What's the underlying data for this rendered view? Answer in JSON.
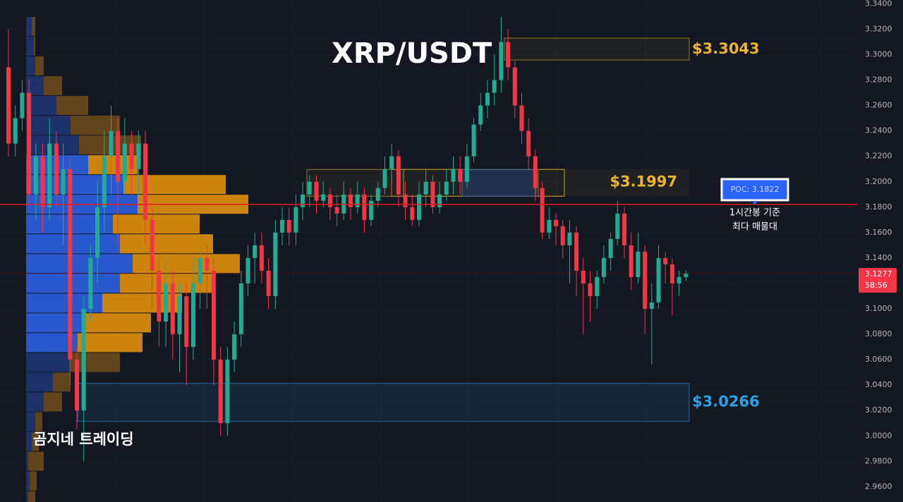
{
  "chart_data": {
    "type": "candlestick",
    "title": "XRP/USDT",
    "watermark": "곰지네 트레이딩",
    "up_color": "#22ab94",
    "down_color": "#f23645",
    "ylim": [
      2.948,
      3.343
    ],
    "yticks": [
      {
        "value": 3.34,
        "label": "3.3400"
      },
      {
        "value": 3.32,
        "label": "3.3200"
      },
      {
        "value": 3.3,
        "label": "3.3000"
      },
      {
        "value": 3.28,
        "label": "3.2800"
      },
      {
        "value": 3.26,
        "label": "3.2600"
      },
      {
        "value": 3.24,
        "label": "3.2400"
      },
      {
        "value": 3.22,
        "label": "3.2200"
      },
      {
        "value": 3.2,
        "label": "3.2000"
      },
      {
        "value": 3.18,
        "label": "3.1800"
      },
      {
        "value": 3.16,
        "label": "3.1600"
      },
      {
        "value": 3.14,
        "label": "3.1400"
      },
      {
        "value": 3.12,
        "label": "3.1200"
      },
      {
        "value": 3.1,
        "label": "3.1000"
      },
      {
        "value": 3.08,
        "label": "3.0800"
      },
      {
        "value": 3.06,
        "label": "3.0600"
      },
      {
        "value": 3.04,
        "label": "3.0400"
      },
      {
        "value": 3.02,
        "label": "3.0200"
      },
      {
        "value": 3.0,
        "label": "3.0000"
      },
      {
        "value": 2.98,
        "label": "2.9800"
      },
      {
        "value": 2.96,
        "label": "2.9600"
      }
    ],
    "open": [
      3.29,
      3.23,
      3.25,
      3.27,
      3.19,
      3.22,
      3.18,
      3.23,
      3.19,
      3.21,
      3.06,
      3.02,
      3.1,
      3.14,
      3.18,
      3.22,
      3.24,
      3.2,
      3.23,
      3.21,
      3.23,
      3.17,
      3.13,
      3.09,
      3.12,
      3.08,
      3.11,
      3.07,
      3.12,
      3.14,
      3.13,
      3.06,
      3.01,
      3.06,
      3.08,
      3.12,
      3.14,
      3.15,
      3.13,
      3.11,
      3.16,
      3.17,
      3.16,
      3.18,
      3.19,
      3.2,
      3.185,
      3.19,
      3.18,
      3.175,
      3.19,
      3.18,
      3.19,
      3.17,
      3.185,
      3.195,
      3.21,
      3.22,
      3.19,
      3.18,
      3.17,
      3.19,
      3.2,
      3.18,
      3.19,
      3.2,
      3.21,
      3.2,
      3.22,
      3.245,
      3.26,
      3.27,
      3.28,
      3.31,
      3.29,
      3.26,
      3.24,
      3.22,
      3.195,
      3.16,
      3.17,
      3.165,
      3.15,
      3.16,
      3.13,
      3.12,
      3.11,
      3.125,
      3.14,
      3.155,
      3.175,
      3.15,
      3.125,
      3.145,
      3.1,
      3.105,
      3.14,
      3.135,
      3.12,
      3.125
    ],
    "high": [
      3.32,
      3.26,
      3.28,
      3.28,
      3.23,
      3.23,
      3.25,
      3.24,
      3.23,
      3.22,
      3.07,
      3.11,
      3.15,
      3.2,
      3.24,
      3.26,
      3.25,
      3.25,
      3.24,
      3.24,
      3.24,
      3.18,
      3.14,
      3.14,
      3.13,
      3.12,
      3.12,
      3.14,
      3.15,
      3.15,
      3.14,
      3.07,
      3.07,
      3.09,
      3.13,
      3.15,
      3.16,
      3.16,
      3.14,
      3.17,
      3.18,
      3.18,
      3.19,
      3.2,
      3.205,
      3.205,
      3.2,
      3.195,
      3.19,
      3.2,
      3.195,
      3.2,
      3.195,
      3.19,
      3.2,
      3.22,
      3.23,
      3.225,
      3.2,
      3.19,
      3.2,
      3.21,
      3.205,
      3.2,
      3.21,
      3.22,
      3.22,
      3.23,
      3.25,
      3.27,
      3.28,
      3.3,
      3.33,
      3.32,
      3.295,
      3.27,
      3.25,
      3.225,
      3.2,
      3.18,
      3.175,
      3.17,
      3.17,
      3.165,
      3.14,
      3.13,
      3.13,
      3.15,
      3.16,
      3.185,
      3.18,
      3.16,
      3.16,
      3.15,
      3.12,
      3.15,
      3.145,
      3.14,
      3.13,
      3.13
    ],
    "low": [
      3.22,
      3.22,
      3.24,
      3.18,
      3.17,
      3.16,
      3.17,
      3.18,
      3.15,
      3.04,
      3.005,
      2.98,
      3.09,
      3.12,
      3.16,
      3.19,
      3.15,
      3.19,
      3.19,
      3.19,
      3.15,
      3.1,
      3.07,
      3.07,
      3.06,
      3.05,
      3.04,
      3.06,
      3.1,
      3.1,
      3.04,
      3.0,
      3.0,
      3.05,
      3.07,
      3.11,
      3.12,
      3.12,
      3.1,
      3.1,
      3.15,
      3.15,
      3.15,
      3.17,
      3.18,
      3.175,
      3.18,
      3.17,
      3.165,
      3.17,
      3.17,
      3.175,
      3.16,
      3.165,
      3.18,
      3.19,
      3.2,
      3.18,
      3.17,
      3.165,
      3.165,
      3.18,
      3.175,
      3.175,
      3.185,
      3.19,
      3.19,
      3.195,
      3.215,
      3.24,
      3.25,
      3.26,
      3.27,
      3.28,
      3.25,
      3.23,
      3.21,
      3.185,
      3.155,
      3.155,
      3.15,
      3.14,
      3.12,
      3.11,
      3.08,
      3.09,
      3.1,
      3.12,
      3.13,
      3.15,
      3.14,
      3.115,
      3.12,
      3.08,
      3.056,
      3.1,
      3.12,
      3.095,
      3.11,
      3.122
    ],
    "close": [
      3.23,
      3.25,
      3.27,
      3.19,
      3.22,
      3.18,
      3.23,
      3.19,
      3.21,
      3.06,
      3.02,
      3.1,
      3.14,
      3.18,
      3.22,
      3.24,
      3.2,
      3.23,
      3.21,
      3.23,
      3.17,
      3.13,
      3.09,
      3.12,
      3.08,
      3.11,
      3.07,
      3.12,
      3.14,
      3.13,
      3.06,
      3.01,
      3.06,
      3.08,
      3.12,
      3.14,
      3.15,
      3.13,
      3.11,
      3.16,
      3.17,
      3.16,
      3.18,
      3.19,
      3.2,
      3.185,
      3.19,
      3.18,
      3.175,
      3.19,
      3.18,
      3.19,
      3.17,
      3.185,
      3.195,
      3.21,
      3.22,
      3.19,
      3.18,
      3.17,
      3.19,
      3.2,
      3.18,
      3.19,
      3.2,
      3.21,
      3.2,
      3.22,
      3.245,
      3.26,
      3.27,
      3.28,
      3.31,
      3.29,
      3.26,
      3.24,
      3.22,
      3.195,
      3.16,
      3.17,
      3.165,
      3.15,
      3.16,
      3.13,
      3.12,
      3.11,
      3.125,
      3.14,
      3.155,
      3.175,
      3.15,
      3.125,
      3.145,
      3.1,
      3.105,
      3.14,
      3.135,
      3.12,
      3.125,
      3.1277
    ],
    "volume_profile": {
      "bins": [
        3.3297,
        3.3142,
        3.2986,
        3.2831,
        3.2675,
        3.252,
        3.2364,
        3.2209,
        3.2053,
        3.1898,
        3.1742,
        3.1587,
        3.1431,
        3.1276,
        3.112,
        3.0965,
        3.0809,
        3.0654,
        3.0498,
        3.0343,
        3.0187,
        3.0032,
        2.9876,
        2.9721,
        2.9565,
        2.941
      ],
      "buy": [
        8,
        11,
        13,
        25,
        43,
        63,
        75,
        88,
        138,
        158,
        123,
        133,
        151,
        133,
        108,
        81,
        73,
        63,
        38,
        25,
        13,
        8,
        3,
        5,
        3
      ],
      "sell": [
        5,
        2,
        12,
        26,
        45,
        70,
        88,
        70,
        145,
        157,
        123,
        132,
        152,
        132,
        113,
        96,
        92,
        70,
        25,
        26,
        10,
        10,
        22,
        10,
        10
      ],
      "buy_color": "#2a5bd7",
      "sell_color": "#d68a0c",
      "value_area_high": 3.2209,
      "value_area_low": 3.0654
    },
    "zones": [
      {
        "label": "$3.3043",
        "value": 3.3043,
        "high": 3.313,
        "low": 3.2958,
        "color": "#f0b429"
      },
      {
        "label": "$3.1997",
        "value": 3.1997,
        "high": 3.2097,
        "low": 3.1886,
        "color": "#f0b429"
      },
      {
        "label": "$3.0266",
        "value": 3.0266,
        "high": 3.0414,
        "low": 3.0114,
        "color": "#29a3e8"
      }
    ],
    "poc": {
      "value": 3.1822,
      "label": "POC: 3.1822",
      "color": "#e01e1e"
    },
    "poc_note": [
      "1시간봉 기준",
      "최다 매물대"
    ],
    "last_price": 3.1277,
    "countdown": "58:56"
  }
}
